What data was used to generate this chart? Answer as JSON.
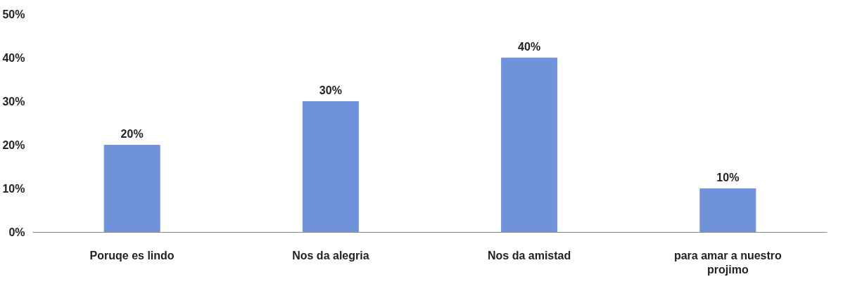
{
  "chart_data": {
    "type": "bar",
    "categories": [
      "Poruqe es lindo",
      "Nos da alegria",
      "Nos da amistad",
      "para amar a nuestro projimo"
    ],
    "values": [
      20,
      30,
      40,
      10
    ],
    "color": "#7092d8",
    "value_labels": [
      "20%",
      "30%",
      "40%",
      "10%"
    ],
    "ylim": [
      0,
      50
    ],
    "yticks": [
      {
        "value": 0,
        "label": "0%"
      },
      {
        "value": 10,
        "label": "10%"
      },
      {
        "value": 20,
        "label": "20%"
      },
      {
        "value": 30,
        "label": "30%"
      },
      {
        "value": 40,
        "label": "40%"
      },
      {
        "value": 50,
        "label": "50%"
      }
    ],
    "grid": false
  }
}
